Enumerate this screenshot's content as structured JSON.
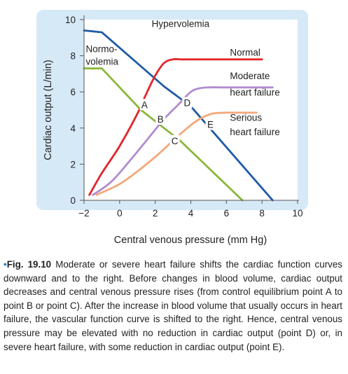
{
  "chart_data": {
    "type": "line",
    "xlabel": "Central venous pressure (mm Hg)",
    "ylabel": "Cardiac output (L/min)",
    "xlim": [
      -2,
      10
    ],
    "ylim": [
      0,
      10
    ],
    "x_ticks": [
      "−2",
      "0",
      "2",
      "4",
      "6",
      "8",
      "10"
    ],
    "y_ticks": [
      "0",
      "2",
      "4",
      "6",
      "8",
      "10"
    ],
    "colors": {
      "panel": "#d6e9f7",
      "plot_bg": "#ffffff",
      "normal": "#e3262b",
      "moderate": "#b08cd0",
      "serious": "#f4a77a",
      "hypervolemia": "#1f5aa6",
      "normovolemia": "#8ab83b"
    },
    "series": [
      {
        "name": "Normal",
        "kind": "cardiac-function",
        "x": [
          -1.7,
          -1,
          0,
          1,
          1.5,
          2,
          2.5,
          3,
          3.5,
          4,
          6,
          8
        ],
        "y": [
          0.3,
          1.5,
          3.0,
          4.8,
          5.9,
          6.9,
          7.6,
          7.8,
          7.8,
          7.8,
          7.8,
          7.8
        ]
      },
      {
        "name": "Moderate heart failure",
        "kind": "cardiac-function",
        "x": [
          -1.5,
          -0.5,
          0.5,
          1.5,
          2.5,
          3.3,
          4,
          4.5,
          5,
          6,
          8.6
        ],
        "y": [
          0.3,
          1.0,
          2.1,
          3.3,
          4.5,
          5.3,
          6.0,
          6.2,
          6.25,
          6.25,
          6.25
        ]
      },
      {
        "name": "Serious heart failure",
        "kind": "cardiac-function",
        "x": [
          -1.3,
          0,
          1,
          2,
          3,
          3.8,
          4.5,
          5.2,
          6,
          6.5,
          7.7
        ],
        "y": [
          0.3,
          0.9,
          1.6,
          2.4,
          3.3,
          4.0,
          4.5,
          4.8,
          4.85,
          4.85,
          4.85
        ]
      },
      {
        "name": "Hypervolemia",
        "kind": "vascular-function",
        "x": [
          -2,
          -1,
          2.5,
          4,
          8.6
        ],
        "y": [
          9.4,
          9.3,
          6.3,
          5.2,
          0
        ]
      },
      {
        "name": "Normovolemia",
        "kind": "vascular-function",
        "x": [
          -2,
          -1,
          1.2,
          3.4,
          6.9
        ],
        "y": [
          7.3,
          7.3,
          5.0,
          3.3,
          0
        ]
      }
    ],
    "points": [
      {
        "label": "A",
        "x": 1.4,
        "y": 5.3
      },
      {
        "label": "B",
        "x": 2.3,
        "y": 4.5
      },
      {
        "label": "C",
        "x": 3.1,
        "y": 3.3
      },
      {
        "label": "D",
        "x": 3.8,
        "y": 5.4
      },
      {
        "label": "E",
        "x": 5.1,
        "y": 4.2
      }
    ],
    "annotations": [
      {
        "text": "Hypervolemia",
        "x": 1.8,
        "y": 9.6
      },
      {
        "text": "Normo-",
        "x": -1.9,
        "y": 8.2
      },
      {
        "text": "volemia",
        "x": -1.9,
        "y": 7.5
      },
      {
        "text": "Normal",
        "x": 6.2,
        "y": 8.0
      },
      {
        "text": "Moderate",
        "x": 6.2,
        "y": 6.7
      },
      {
        "text": "heart failure",
        "x": 6.2,
        "y": 5.8
      },
      {
        "text": "Serious",
        "x": 6.2,
        "y": 4.4
      },
      {
        "text": "heart failure",
        "x": 6.2,
        "y": 3.6
      }
    ]
  },
  "caption": {
    "bullet": "•",
    "label": "Fig. 19.10",
    "text": "Moderate or severe heart failure shifts the cardiac function curves downward and to the right. Before changes in blood volume, cardiac output decreases and central venous pressure rises (from control equilibrium point A to point B or point C). After the increase in blood volume that usually occurs in heart failure, the vascular function curve is shifted to the right. Hence, central venous pressure may be elevated with no reduction in cardiac output (point D) or, in severe heart failure, with some reduction in cardiac output (point E)."
  }
}
